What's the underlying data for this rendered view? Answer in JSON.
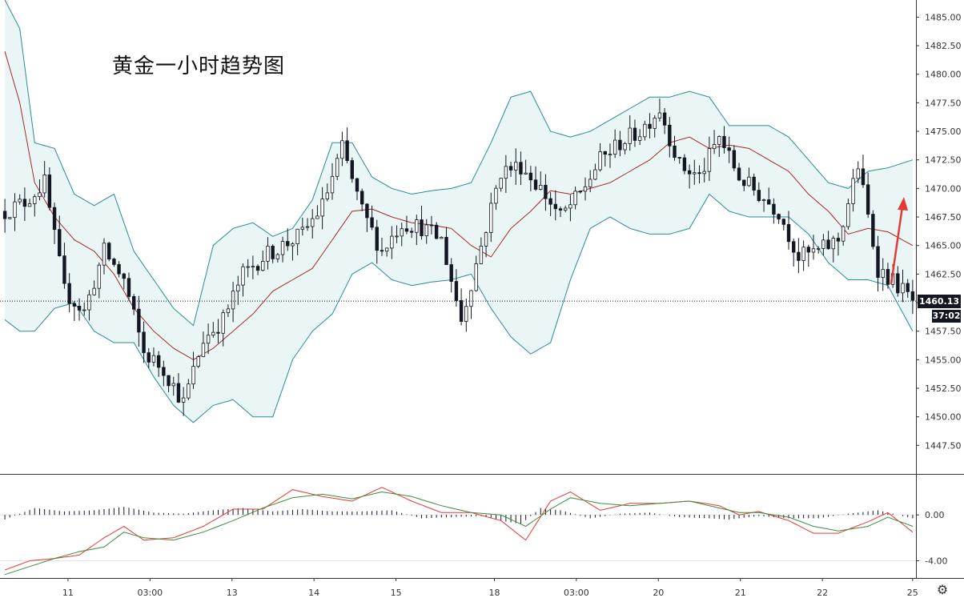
{
  "chart_data": [
    {
      "type": "candlestick",
      "title": "黄金一小时趋势图",
      "price_axis": {
        "ylim": [
          1445.0,
          1486.5
        ],
        "ticks": [
          1447.5,
          1450.0,
          1452.5,
          1455.0,
          1457.5,
          1460.0,
          1462.5,
          1465.0,
          1467.5,
          1470.0,
          1472.5,
          1475.0,
          1477.5,
          1480.0,
          1482.5,
          1485.0
        ],
        "tick_labels": [
          "1447.50",
          "1450.00",
          "1452.50",
          "1455.00",
          "1457.50",
          "1460.00",
          "1462.50",
          "1465.00",
          "1467.50",
          "1470.00",
          "1472.50",
          "1475.00",
          "1477.50",
          "1480.00",
          "1482.50",
          "1485.00"
        ]
      },
      "time_axis": {
        "labels": [
          "11",
          "03:00",
          "13",
          "14",
          "15",
          "18",
          "03:00",
          "20",
          "21",
          "22",
          "25"
        ],
        "label_index": [
          8,
          18,
          28,
          38,
          48,
          60,
          70,
          80,
          90,
          100,
          111
        ]
      },
      "current_price": "1460.13",
      "countdown": "37:02",
      "close_path": [
        [
          0,
          1468.0
        ],
        [
          4,
          1468.8
        ],
        [
          8,
          1470.5
        ],
        [
          12,
          1461.0
        ],
        [
          16,
          1459.2
        ],
        [
          20,
          1464.5
        ],
        [
          24,
          1462.0
        ],
        [
          28,
          1455.6
        ],
        [
          32,
          1454.2
        ],
        [
          36,
          1451.2
        ],
        [
          40,
          1456.8
        ],
        [
          44,
          1458.5
        ],
        [
          48,
          1462.5
        ],
        [
          52,
          1464.0
        ],
        [
          56,
          1465.0
        ],
        [
          60,
          1466.0
        ],
        [
          64,
          1468.5
        ],
        [
          68,
          1473.5
        ],
        [
          72,
          1468.0
        ],
        [
          76,
          1464.5
        ],
        [
          80,
          1467.0
        ],
        [
          84,
          1466.6
        ],
        [
          88,
          1465.5
        ],
        [
          92,
          1458.5
        ],
        [
          96,
          1465.0
        ],
        [
          100,
          1471.5
        ],
        [
          104,
          1472.0
        ],
        [
          108,
          1470.0
        ],
        [
          112,
          1467.5
        ],
        [
          116,
          1469.5
        ],
        [
          120,
          1472.5
        ],
        [
          124,
          1474.0
        ],
        [
          128,
          1475.0
        ],
        [
          132,
          1477.0
        ],
        [
          136,
          1472.0
        ],
        [
          140,
          1471.0
        ],
        [
          144,
          1474.5
        ],
        [
          148,
          1471.0
        ],
        [
          152,
          1469.5
        ],
        [
          156,
          1468.0
        ],
        [
          160,
          1464.0
        ],
        [
          164,
          1464.5
        ],
        [
          168,
          1465.5
        ],
        [
          172,
          1472.0
        ],
        [
          176,
          1463.0
        ],
        [
          180,
          1461.5
        ],
        [
          183,
          1460.13
        ]
      ],
      "bollinger_bands": {
        "upper": [
          [
            0,
            1486.5
          ],
          [
            3,
            1484.0
          ],
          [
            6,
            1474.0
          ],
          [
            10,
            1473.5
          ],
          [
            14,
            1469.5
          ],
          [
            18,
            1468.5
          ],
          [
            22,
            1469.5
          ],
          [
            26,
            1464.5
          ],
          [
            30,
            1462.0
          ],
          [
            34,
            1459.5
          ],
          [
            38,
            1458.0
          ],
          [
            42,
            1465.0
          ],
          [
            46,
            1466.5
          ],
          [
            50,
            1467.0
          ],
          [
            54,
            1465.8
          ],
          [
            58,
            1466.5
          ],
          [
            62,
            1469.0
          ],
          [
            66,
            1474.0
          ],
          [
            70,
            1474.0
          ],
          [
            74,
            1471.0
          ],
          [
            78,
            1470.0
          ],
          [
            82,
            1469.5
          ],
          [
            86,
            1469.8
          ],
          [
            90,
            1470.0
          ],
          [
            94,
            1470.5
          ],
          [
            98,
            1474.0
          ],
          [
            102,
            1478.0
          ],
          [
            106,
            1478.5
          ],
          [
            110,
            1475.0
          ],
          [
            114,
            1474.5
          ],
          [
            118,
            1475.0
          ],
          [
            122,
            1476.0
          ],
          [
            126,
            1477.0
          ],
          [
            130,
            1478.0
          ],
          [
            134,
            1478.0
          ],
          [
            138,
            1478.5
          ],
          [
            142,
            1478.0
          ],
          [
            146,
            1475.5
          ],
          [
            150,
            1475.5
          ],
          [
            154,
            1475.5
          ],
          [
            158,
            1474.5
          ],
          [
            162,
            1472.5
          ],
          [
            166,
            1470.5
          ],
          [
            170,
            1470.0
          ],
          [
            174,
            1471.5
          ],
          [
            178,
            1471.8
          ],
          [
            183,
            1472.5
          ]
        ],
        "middle": [
          [
            0,
            1482.0
          ],
          [
            3,
            1477.5
          ],
          [
            6,
            1470.5
          ],
          [
            10,
            1467.5
          ],
          [
            14,
            1465.5
          ],
          [
            18,
            1464.5
          ],
          [
            22,
            1462.5
          ],
          [
            26,
            1459.5
          ],
          [
            30,
            1457.5
          ],
          [
            34,
            1456.0
          ],
          [
            38,
            1455.0
          ],
          [
            42,
            1456.0
          ],
          [
            46,
            1457.5
          ],
          [
            50,
            1459.0
          ],
          [
            54,
            1461.0
          ],
          [
            58,
            1462.0
          ],
          [
            62,
            1463.0
          ],
          [
            66,
            1465.5
          ],
          [
            70,
            1468.0
          ],
          [
            74,
            1468.2
          ],
          [
            78,
            1467.5
          ],
          [
            82,
            1467.0
          ],
          [
            86,
            1466.8
          ],
          [
            90,
            1466.5
          ],
          [
            94,
            1465.0
          ],
          [
            98,
            1464.0
          ],
          [
            102,
            1466.5
          ],
          [
            106,
            1468.0
          ],
          [
            110,
            1469.8
          ],
          [
            114,
            1469.5
          ],
          [
            118,
            1470.0
          ],
          [
            122,
            1470.5
          ],
          [
            126,
            1471.5
          ],
          [
            130,
            1472.5
          ],
          [
            134,
            1474.0
          ],
          [
            138,
            1474.5
          ],
          [
            142,
            1473.5
          ],
          [
            146,
            1473.8
          ],
          [
            150,
            1473.5
          ],
          [
            154,
            1472.5
          ],
          [
            158,
            1471.5
          ],
          [
            162,
            1469.5
          ],
          [
            166,
            1468.0
          ],
          [
            170,
            1466.0
          ],
          [
            174,
            1466.5
          ],
          [
            178,
            1466.2
          ],
          [
            183,
            1465.0
          ]
        ],
        "lower": [
          [
            0,
            1458.5
          ],
          [
            3,
            1457.5
          ],
          [
            6,
            1457.5
          ],
          [
            10,
            1459.5
          ],
          [
            14,
            1460.0
          ],
          [
            18,
            1457.5
          ],
          [
            22,
            1456.5
          ],
          [
            26,
            1456.5
          ],
          [
            30,
            1453.5
          ],
          [
            34,
            1451.0
          ],
          [
            38,
            1449.5
          ],
          [
            42,
            1451.0
          ],
          [
            46,
            1451.5
          ],
          [
            50,
            1450.0
          ],
          [
            54,
            1450.0
          ],
          [
            58,
            1455.0
          ],
          [
            62,
            1457.5
          ],
          [
            66,
            1459.0
          ],
          [
            70,
            1462.5
          ],
          [
            74,
            1463.5
          ],
          [
            78,
            1462.0
          ],
          [
            82,
            1461.5
          ],
          [
            86,
            1461.8
          ],
          [
            90,
            1462.0
          ],
          [
            94,
            1462.5
          ],
          [
            98,
            1459.5
          ],
          [
            102,
            1457.0
          ],
          [
            106,
            1455.5
          ],
          [
            110,
            1456.5
          ],
          [
            114,
            1462.0
          ],
          [
            118,
            1466.5
          ],
          [
            122,
            1467.5
          ],
          [
            126,
            1466.5
          ],
          [
            130,
            1466.0
          ],
          [
            134,
            1466.0
          ],
          [
            138,
            1466.5
          ],
          [
            142,
            1469.5
          ],
          [
            146,
            1468.0
          ],
          [
            150,
            1467.5
          ],
          [
            154,
            1467.5
          ],
          [
            158,
            1467.5
          ],
          [
            162,
            1466.0
          ],
          [
            166,
            1463.5
          ],
          [
            170,
            1462.0
          ],
          [
            174,
            1462.0
          ],
          [
            178,
            1461.5
          ],
          [
            183,
            1457.5
          ]
        ]
      },
      "annotation": "red up-arrow at right edge"
    },
    {
      "type": "line",
      "ylim": [
        -5.5,
        3.5
      ],
      "ticks": [
        0,
        -4
      ],
      "tick_labels": [
        "0.00",
        "-4.00"
      ],
      "series": [
        {
          "color": "#e53935",
          "points": [
            [
              0,
              -4.8
            ],
            [
              5,
              -4.0
            ],
            [
              10,
              -3.8
            ],
            [
              15,
              -3.5
            ],
            [
              20,
              -2.0
            ],
            [
              24,
              -1.0
            ],
            [
              28,
              -2.2
            ],
            [
              34,
              -2.0
            ],
            [
              40,
              -1.0
            ],
            [
              46,
              0.5
            ],
            [
              52,
              0.5
            ],
            [
              58,
              2.2
            ],
            [
              64,
              1.6
            ],
            [
              70,
              1.2
            ],
            [
              76,
              2.4
            ],
            [
              82,
              1.2
            ],
            [
              88,
              0.2
            ],
            [
              94,
              0.2
            ],
            [
              100,
              -0.5
            ],
            [
              105,
              -2.2
            ],
            [
              110,
              1.2
            ],
            [
              114,
              2.0
            ],
            [
              120,
              0.4
            ],
            [
              126,
              1.0
            ],
            [
              132,
              1.0
            ],
            [
              138,
              1.2
            ],
            [
              144,
              0.8
            ],
            [
              148,
              0.0
            ],
            [
              152,
              0.3
            ],
            [
              158,
              -0.5
            ],
            [
              163,
              -1.6
            ],
            [
              168,
              -1.6
            ],
            [
              174,
              -0.6
            ],
            [
              178,
              0.2
            ],
            [
              183,
              -1.5
            ]
          ]
        },
        {
          "color": "#388e3c",
          "points": [
            [
              0,
              -5.2
            ],
            [
              5,
              -4.5
            ],
            [
              10,
              -3.8
            ],
            [
              15,
              -3.2
            ],
            [
              20,
              -2.8
            ],
            [
              24,
              -1.5
            ],
            [
              28,
              -2.0
            ],
            [
              34,
              -2.2
            ],
            [
              40,
              -1.5
            ],
            [
              46,
              -0.5
            ],
            [
              52,
              0.6
            ],
            [
              58,
              1.5
            ],
            [
              64,
              1.8
            ],
            [
              70,
              1.4
            ],
            [
              76,
              2.0
            ],
            [
              82,
              1.6
            ],
            [
              88,
              0.8
            ],
            [
              94,
              0.2
            ],
            [
              100,
              0.0
            ],
            [
              105,
              -1.0
            ],
            [
              110,
              0.5
            ],
            [
              114,
              1.5
            ],
            [
              120,
              1.0
            ],
            [
              126,
              0.8
            ],
            [
              132,
              1.0
            ],
            [
              138,
              1.2
            ],
            [
              144,
              0.6
            ],
            [
              148,
              0.2
            ],
            [
              152,
              0.2
            ],
            [
              158,
              -0.2
            ],
            [
              163,
              -1.0
            ],
            [
              168,
              -1.4
            ],
            [
              174,
              -1.0
            ],
            [
              178,
              -0.2
            ],
            [
              183,
              -1.0
            ]
          ]
        }
      ],
      "histogram": [
        [
          0,
          -0.4
        ],
        [
          6,
          0.6
        ],
        [
          12,
          0.3
        ],
        [
          18,
          0.4
        ],
        [
          24,
          0.7
        ],
        [
          30,
          0.2
        ],
        [
          36,
          0.1
        ],
        [
          42,
          0.4
        ],
        [
          48,
          0.6
        ],
        [
          54,
          0.3
        ],
        [
          60,
          0.5
        ],
        [
          66,
          0.3
        ],
        [
          72,
          0.3
        ],
        [
          78,
          0.4
        ],
        [
          84,
          -0.3
        ],
        [
          90,
          -0.2
        ],
        [
          96,
          -0.1
        ],
        [
          100,
          -0.5
        ],
        [
          104,
          -0.8
        ],
        [
          108,
          0.6
        ],
        [
          112,
          0.4
        ],
        [
          118,
          -0.3
        ],
        [
          124,
          0.1
        ],
        [
          130,
          0.2
        ],
        [
          136,
          -0.2
        ],
        [
          142,
          -0.3
        ],
        [
          146,
          -0.4
        ],
        [
          152,
          -0.1
        ],
        [
          158,
          -0.3
        ],
        [
          164,
          -0.3
        ],
        [
          170,
          0.1
        ],
        [
          176,
          0.4
        ],
        [
          183,
          -0.3
        ]
      ]
    }
  ],
  "colors": {
    "candle": "#131722",
    "band": "#2a8c92",
    "band_fill": "#eaf5f6",
    "basis": "#a52a2a",
    "axis_text": "#333333",
    "arrow": "#e53935"
  },
  "icons": {
    "settings": "gear-icon"
  },
  "settings_glyph": "⚙"
}
